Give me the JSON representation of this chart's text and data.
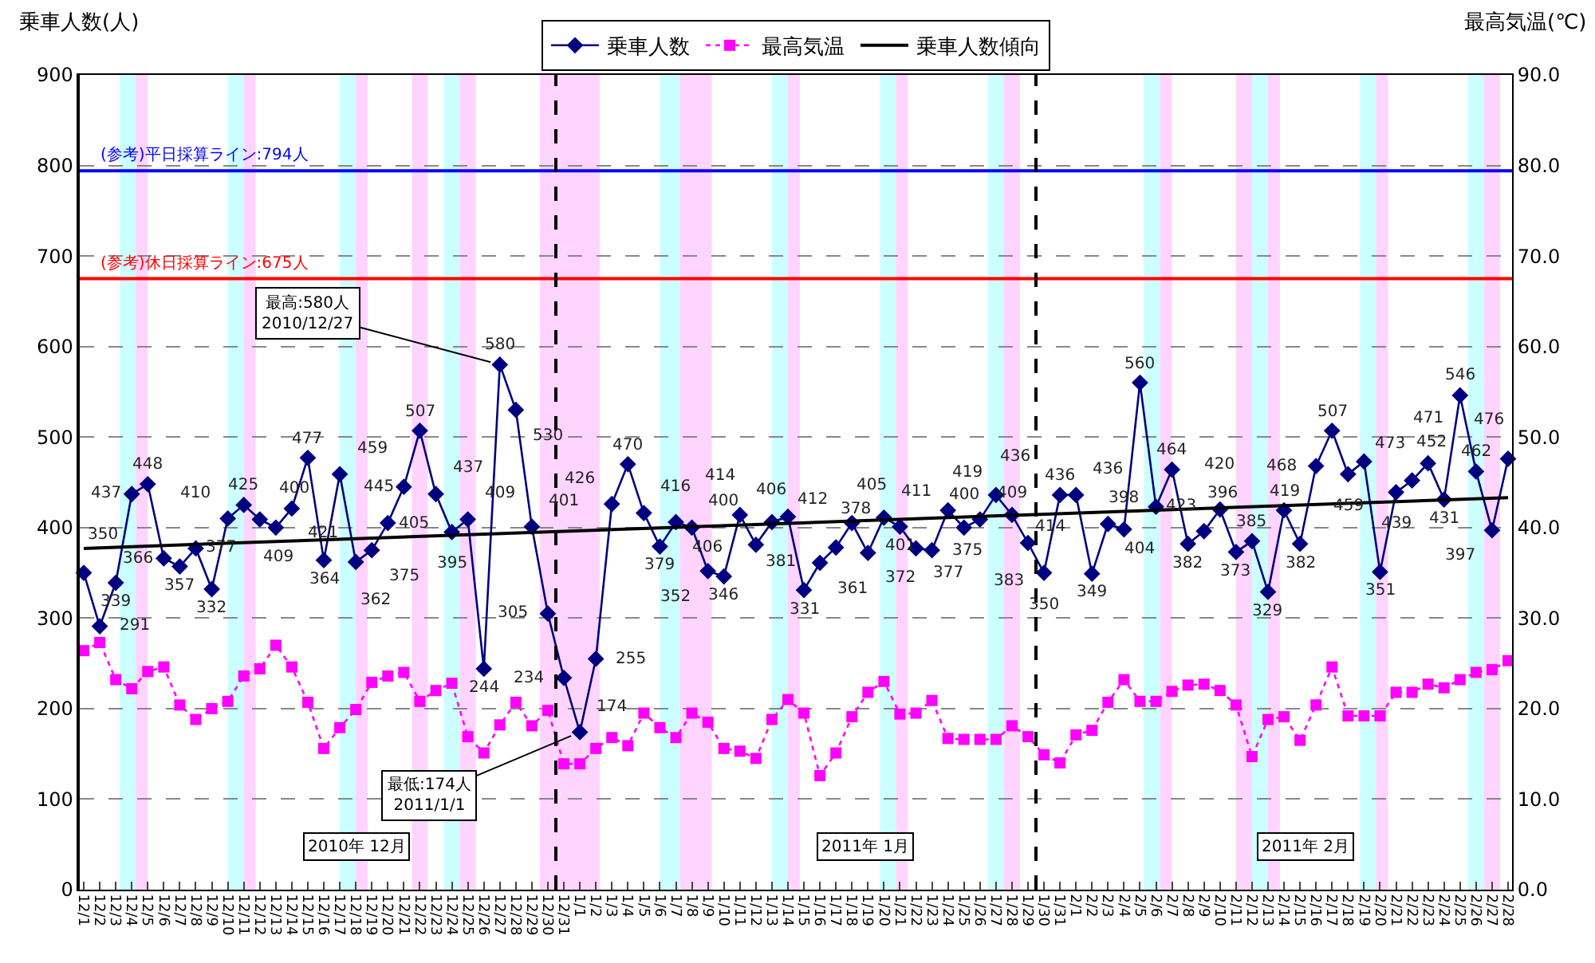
{
  "chart_data": {
    "type": "line",
    "ylabel": "乗車人数(人)",
    "y2label": "最高気温(℃)",
    "x": [
      "2010-12-01",
      "2010-12-02",
      "2010-12-03",
      "2010-12-04",
      "2010-12-05",
      "2010-12-06",
      "2010-12-07",
      "2010-12-08",
      "2010-12-09",
      "2010-12-10",
      "2010-12-11",
      "2010-12-12",
      "2010-12-13",
      "2010-12-14",
      "2010-12-15",
      "2010-12-16",
      "2010-12-17",
      "2010-12-18",
      "2010-12-19",
      "2010-12-20",
      "2010-12-21",
      "2010-12-22",
      "2010-12-23",
      "2010-12-24",
      "2010-12-25",
      "2010-12-26",
      "2010-12-27",
      "2010-12-28",
      "2010-12-29",
      "2010-12-30",
      "2010-12-31",
      "2011-01-01",
      "2011-01-02",
      "2011-01-03",
      "2011-01-04",
      "2011-01-05",
      "2011-01-06",
      "2011-01-07",
      "2011-01-08",
      "2011-01-09",
      "2011-01-10",
      "2011-01-11",
      "2011-01-12",
      "2011-01-13",
      "2011-01-14",
      "2011-01-15",
      "2011-01-16",
      "2011-01-17",
      "2011-01-18",
      "2011-01-19",
      "2011-01-20",
      "2011-01-21",
      "2011-01-22",
      "2011-01-23",
      "2011-01-24",
      "2011-01-25",
      "2011-01-26",
      "2011-01-27",
      "2011-01-28",
      "2011-01-29",
      "2011-01-30",
      "2011-01-31",
      "2011-02-01",
      "2011-02-02",
      "2011-02-03",
      "2011-02-04",
      "2011-02-05",
      "2011-02-06",
      "2011-02-07",
      "2011-02-08",
      "2011-02-09",
      "2011-02-10",
      "2011-02-11",
      "2011-02-12",
      "2011-02-13",
      "2011-02-14",
      "2011-02-15",
      "2011-02-16",
      "2011-02-17",
      "2011-02-18",
      "2011-02-19",
      "2011-02-20",
      "2011-02-21",
      "2011-02-22",
      "2011-02-23",
      "2011-02-24",
      "2011-02-25",
      "2011-02-26",
      "2011-02-27",
      "2011-02-28"
    ],
    "series": [
      {
        "name": "乗車人数",
        "color": "#000080",
        "marker": "diamond",
        "line_style": "solid",
        "values": [
          350,
          291,
          339,
          437,
          448,
          366,
          357,
          377,
          332,
          410,
          425,
          409,
          400,
          421,
          477,
          364,
          459,
          362,
          375,
          405,
          445,
          507,
          437,
          395,
          409,
          244,
          580,
          530,
          401,
          305,
          234,
          174,
          255,
          426,
          470,
          416,
          379,
          406,
          400,
          352,
          346,
          414,
          381,
          406,
          412,
          331,
          361,
          378,
          405,
          372,
          411,
          401,
          377,
          375,
          419,
          400,
          409,
          436,
          414,
          383,
          350,
          436,
          436,
          349,
          404,
          398,
          560,
          423,
          464,
          382,
          396,
          420,
          373,
          385,
          329,
          419,
          382,
          468,
          507,
          459,
          473,
          351,
          439,
          452,
          471,
          431,
          546,
          462,
          397,
          476
        ],
        "value_labels": [
          "350",
          "291",
          "339",
          "437",
          "448",
          "366",
          "357",
          "377",
          "332",
          "410",
          "425",
          "409",
          "400",
          "421",
          "477",
          "364",
          "459",
          "362",
          "375",
          "405",
          "445",
          "507",
          "437",
          "395",
          "409",
          "244",
          "580",
          "530",
          "401",
          "305",
          "234",
          "174",
          "255",
          "426",
          "470",
          "416",
          "379",
          "406",
          "400",
          "352",
          "346",
          "414",
          "381",
          "406",
          "412",
          "331",
          "361",
          "378",
          "405",
          "372",
          "411",
          "401",
          "377",
          "375",
          "419",
          "400",
          "409",
          "436",
          "414",
          "383",
          "350",
          "436",
          "436",
          "349",
          "404",
          "398",
          "560",
          "423",
          "464",
          "382",
          "396",
          "420",
          "373",
          "385",
          "329",
          "419",
          "382",
          "468",
          "507",
          "459",
          "473",
          "351",
          "439",
          "452",
          "471",
          "431",
          "546",
          "462",
          "397",
          "476"
        ]
      },
      {
        "name": "最高気温",
        "color": "#ff00ff",
        "marker": "square",
        "line_style": "dotted",
        "axis": "y2",
        "values": [
          26.4,
          27.3,
          23.2,
          22.2,
          24.1,
          24.6,
          20.4,
          18.8,
          20.0,
          20.8,
          23.6,
          24.4,
          27.0,
          24.6,
          20.7,
          15.6,
          17.9,
          19.9,
          22.9,
          23.6,
          24.0,
          20.8,
          22.0,
          22.8,
          16.9,
          15.1,
          18.2,
          20.7,
          18.1,
          19.8,
          13.9,
          13.9,
          15.6,
          16.8,
          15.9,
          19.5,
          17.9,
          16.8,
          19.5,
          18.5,
          15.6,
          15.3,
          14.5,
          18.8,
          21.0,
          19.5,
          12.6,
          15.1,
          19.1,
          21.8,
          23.0,
          19.4,
          19.5,
          20.9,
          16.7,
          16.6,
          16.6,
          16.6,
          18.1,
          16.9,
          14.9,
          14.0,
          17.1,
          17.6,
          20.7,
          23.2,
          20.8,
          20.8,
          21.9,
          22.6,
          22.7,
          22.0,
          20.4,
          14.7,
          18.8,
          19.1,
          16.5,
          20.4,
          24.6,
          19.2,
          19.2,
          19.2,
          21.8,
          21.8,
          22.7,
          22.3,
          23.2,
          24.0,
          24.3,
          25.3
        ]
      },
      {
        "name": "乗車人数傾向",
        "color": "#000000",
        "marker": "none",
        "line_style": "solid",
        "x": [
          "2010-12-01",
          "2011-02-28"
        ],
        "values": [
          377,
          433
        ]
      }
    ],
    "xlim": [
      "2010-11-30T18:00",
      "2011-02-28T06:00"
    ],
    "xticks": [
      {
        "value": "2010-12-01",
        "label": "12/1"
      },
      {
        "value": "2010-12-02",
        "label": "12/2"
      },
      {
        "value": "2010-12-03",
        "label": "12/3"
      },
      {
        "value": "2010-12-04",
        "label": "12/4"
      },
      {
        "value": "2010-12-05",
        "label": "12/5"
      },
      {
        "value": "2010-12-06",
        "label": "12/6"
      },
      {
        "value": "2010-12-07",
        "label": "12/7"
      },
      {
        "value": "2010-12-08",
        "label": "12/8"
      },
      {
        "value": "2010-12-09",
        "label": "12/9"
      },
      {
        "value": "2010-12-10",
        "label": "12/10"
      },
      {
        "value": "2010-12-11",
        "label": "12/11"
      },
      {
        "value": "2010-12-12",
        "label": "12/12"
      },
      {
        "value": "2010-12-13",
        "label": "12/13"
      },
      {
        "value": "2010-12-14",
        "label": "12/14"
      },
      {
        "value": "2010-12-15",
        "label": "12/15"
      },
      {
        "value": "2010-12-16",
        "label": "12/16"
      },
      {
        "value": "2010-12-17",
        "label": "12/17"
      },
      {
        "value": "2010-12-18",
        "label": "12/18"
      },
      {
        "value": "2010-12-19",
        "label": "12/19"
      },
      {
        "value": "2010-12-20",
        "label": "12/20"
      },
      {
        "value": "2010-12-21",
        "label": "12/21"
      },
      {
        "value": "2010-12-22",
        "label": "12/22"
      },
      {
        "value": "2010-12-23",
        "label": "12/23"
      },
      {
        "value": "2010-12-24",
        "label": "12/24"
      },
      {
        "value": "2010-12-25",
        "label": "12/25"
      },
      {
        "value": "2010-12-26",
        "label": "12/26"
      },
      {
        "value": "2010-12-27",
        "label": "12/27"
      },
      {
        "value": "2010-12-28",
        "label": "12/28"
      },
      {
        "value": "2010-12-29",
        "label": "12/29"
      },
      {
        "value": "2010-12-30",
        "label": "12/30"
      },
      {
        "value": "2010-12-31",
        "label": "12/31"
      },
      {
        "value": "2011-01-01",
        "label": "1/1"
      },
      {
        "value": "2011-01-02",
        "label": "1/2"
      },
      {
        "value": "2011-01-03",
        "label": "1/3"
      },
      {
        "value": "2011-01-04",
        "label": "1/4"
      },
      {
        "value": "2011-01-05",
        "label": "1/5"
      },
      {
        "value": "2011-01-06",
        "label": "1/6"
      },
      {
        "value": "2011-01-07",
        "label": "1/7"
      },
      {
        "value": "2011-01-08",
        "label": "1/8"
      },
      {
        "value": "2011-01-09",
        "label": "1/9"
      },
      {
        "value": "2011-01-10",
        "label": "1/10"
      },
      {
        "value": "2011-01-11",
        "label": "1/11"
      },
      {
        "value": "2011-01-12",
        "label": "1/12"
      },
      {
        "value": "2011-01-13",
        "label": "1/13"
      },
      {
        "value": "2011-01-14",
        "label": "1/14"
      },
      {
        "value": "2011-01-15",
        "label": "1/15"
      },
      {
        "value": "2011-01-16",
        "label": "1/16"
      },
      {
        "value": "2011-01-17",
        "label": "1/17"
      },
      {
        "value": "2011-01-18",
        "label": "1/18"
      },
      {
        "value": "2011-01-19",
        "label": "1/19"
      },
      {
        "value": "2011-01-20",
        "label": "1/20"
      },
      {
        "value": "2011-01-21",
        "label": "1/21"
      },
      {
        "value": "2011-01-22",
        "label": "1/22"
      },
      {
        "value": "2011-01-23",
        "label": "1/23"
      },
      {
        "value": "2011-01-24",
        "label": "1/24"
      },
      {
        "value": "2011-01-25",
        "label": "1/25"
      },
      {
        "value": "2011-01-26",
        "label": "1/26"
      },
      {
        "value": "2011-01-27",
        "label": "1/27"
      },
      {
        "value": "2011-01-28",
        "label": "1/28"
      },
      {
        "value": "2011-01-29",
        "label": "1/29"
      },
      {
        "value": "2011-01-30",
        "label": "1/30"
      },
      {
        "value": "2011-01-31",
        "label": "1/31"
      },
      {
        "value": "2011-02-01",
        "label": "2/1"
      },
      {
        "value": "2011-02-02",
        "label": "2/2"
      },
      {
        "value": "2011-02-03",
        "label": "2/3"
      },
      {
        "value": "2011-02-04",
        "label": "2/4"
      },
      {
        "value": "2011-02-05",
        "label": "2/5"
      },
      {
        "value": "2011-02-06",
        "label": "2/6"
      },
      {
        "value": "2011-02-07",
        "label": "2/7"
      },
      {
        "value": "2011-02-08",
        "label": "2/8"
      },
      {
        "value": "2011-02-09",
        "label": "2/9"
      },
      {
        "value": "2011-02-10",
        "label": "2/10"
      },
      {
        "value": "2011-02-11",
        "label": "2/11"
      },
      {
        "value": "2011-02-12",
        "label": "2/12"
      },
      {
        "value": "2011-02-13",
        "label": "2/13"
      },
      {
        "value": "2011-02-14",
        "label": "2/14"
      },
      {
        "value": "2011-02-15",
        "label": "2/15"
      },
      {
        "value": "2011-02-16",
        "label": "2/16"
      },
      {
        "value": "2011-02-17",
        "label": "2/17"
      },
      {
        "value": "2011-02-18",
        "label": "2/18"
      },
      {
        "value": "2011-02-19",
        "label": "2/19"
      },
      {
        "value": "2011-02-20",
        "label": "2/20"
      },
      {
        "value": "2011-02-21",
        "label": "2/21"
      },
      {
        "value": "2011-02-22",
        "label": "2/22"
      },
      {
        "value": "2011-02-23",
        "label": "2/23"
      },
      {
        "value": "2011-02-24",
        "label": "2/24"
      },
      {
        "value": "2011-02-25",
        "label": "2/25"
      },
      {
        "value": "2011-02-26",
        "label": "2/26"
      },
      {
        "value": "2011-02-27",
        "label": "2/27"
      },
      {
        "value": "2011-02-28",
        "label": "2/28"
      }
    ],
    "ylim": [
      0,
      900
    ],
    "yticks": [
      0,
      100,
      200,
      300,
      400,
      500,
      600,
      700,
      800,
      900
    ],
    "y2lim": [
      0,
      90
    ],
    "y2ticks": [
      {
        "value": 0,
        "label": "0.0"
      },
      {
        "value": 10,
        "label": "10.0"
      },
      {
        "value": 20,
        "label": "20.0"
      },
      {
        "value": 30,
        "label": "30.0"
      },
      {
        "value": 40,
        "label": "40.0"
      },
      {
        "value": 50,
        "label": "50.0"
      },
      {
        "value": 60,
        "label": "60.0"
      },
      {
        "value": 70,
        "label": "70.0"
      },
      {
        "value": 80,
        "label": "80.0"
      },
      {
        "value": 90,
        "label": "90.0"
      }
    ],
    "grid": "y",
    "legend": "top",
    "ref_lines": [
      {
        "axis": "y",
        "value": 794,
        "label": "(参考)平日採算ライン:794人",
        "color": "#0000ff",
        "line_style": "solid"
      },
      {
        "axis": "y",
        "value": 675,
        "label": "(参考)休日採算ライン:675人",
        "color": "#ff0000",
        "line_style": "solid"
      },
      {
        "axis": "x",
        "value": "2010-12-30T12:00",
        "color": "#000000",
        "line_style": "dashed"
      },
      {
        "axis": "x",
        "value": "2011-01-29T12:00",
        "color": "#000000",
        "line_style": "dashed"
      }
    ],
    "bands": [
      {
        "axis": "x",
        "from": "2010-12-03T06:00",
        "to": "2010-12-04T06:00",
        "color": "#ccffff"
      },
      {
        "axis": "x",
        "from": "2010-12-04T06:00",
        "to": "2010-12-05T00:00",
        "color": "#ffd5ff"
      },
      {
        "axis": "x",
        "from": "2010-12-10T00:00",
        "to": "2010-12-11T00:00",
        "color": "#ccffff"
      },
      {
        "axis": "x",
        "from": "2010-12-11T00:00",
        "to": "2010-12-11T18:00",
        "color": "#ffd5ff"
      },
      {
        "axis": "x",
        "from": "2010-12-17T00:00",
        "to": "2010-12-18T00:00",
        "color": "#ccffff"
      },
      {
        "axis": "x",
        "from": "2010-12-18T00:00",
        "to": "2010-12-18T18:00",
        "color": "#ffd5ff"
      },
      {
        "axis": "x",
        "from": "2010-12-21T12:00",
        "to": "2010-12-22T12:00",
        "color": "#ffd5ff"
      },
      {
        "axis": "x",
        "from": "2010-12-23T12:00",
        "to": "2010-12-24T12:00",
        "color": "#ccffff"
      },
      {
        "axis": "x",
        "from": "2010-12-24T12:00",
        "to": "2010-12-25T12:00",
        "color": "#ffd5ff"
      },
      {
        "axis": "x",
        "from": "2010-12-29T12:00",
        "to": "2011-01-02T06:00",
        "color": "#ffd5ff"
      },
      {
        "axis": "x",
        "from": "2011-01-06T00:00",
        "to": "2011-01-07T06:00",
        "color": "#ccffff"
      },
      {
        "axis": "x",
        "from": "2011-01-07T06:00",
        "to": "2011-01-09T06:00",
        "color": "#ffd5ff"
      },
      {
        "axis": "x",
        "from": "2011-01-13T00:00",
        "to": "2011-01-14T00:00",
        "color": "#ccffff"
      },
      {
        "axis": "x",
        "from": "2011-01-14T00:00",
        "to": "2011-01-14T18:00",
        "color": "#ffd5ff"
      },
      {
        "axis": "x",
        "from": "2011-01-19T18:00",
        "to": "2011-01-20T18:00",
        "color": "#ccffff"
      },
      {
        "axis": "x",
        "from": "2011-01-20T18:00",
        "to": "2011-01-21T12:00",
        "color": "#ffd5ff"
      },
      {
        "axis": "x",
        "from": "2011-01-26T12:00",
        "to": "2011-01-27T12:00",
        "color": "#ccffff"
      },
      {
        "axis": "x",
        "from": "2011-01-27T12:00",
        "to": "2011-01-28T12:00",
        "color": "#ffd5ff"
      },
      {
        "axis": "x",
        "from": "2011-02-05T06:00",
        "to": "2011-02-06T06:00",
        "color": "#ccffff"
      },
      {
        "axis": "x",
        "from": "2011-02-06T06:00",
        "to": "2011-02-07T00:00",
        "color": "#ffd5ff"
      },
      {
        "axis": "x",
        "from": "2011-02-11T00:00",
        "to": "2011-02-12T00:00",
        "color": "#ffd5ff"
      },
      {
        "axis": "x",
        "from": "2011-02-12T00:00",
        "to": "2011-02-13T00:00",
        "color": "#ccffff"
      },
      {
        "axis": "x",
        "from": "2011-02-13T00:00",
        "to": "2011-02-13T18:00",
        "color": "#ffd5ff"
      },
      {
        "axis": "x",
        "from": "2011-02-18T18:00",
        "to": "2011-02-19T18:00",
        "color": "#ccffff"
      },
      {
        "axis": "x",
        "from": "2011-02-19T18:00",
        "to": "2011-02-20T12:00",
        "color": "#ffd5ff"
      },
      {
        "axis": "x",
        "from": "2011-02-25T12:00",
        "to": "2011-02-26T12:00",
        "color": "#ccffff"
      },
      {
        "axis": "x",
        "from": "2011-02-26T12:00",
        "to": "2011-02-27T12:00",
        "color": "#ffd5ff"
      }
    ],
    "annotations": [
      {
        "text": "最高:580人\n2010/12/27",
        "x": "2010-12-27",
        "y": 580
      },
      {
        "text": "最低:174人\n2011/1/1",
        "x": "2011-01-01",
        "y": 174
      },
      "2010年 12月",
      "2011年 1月",
      "2011年 2月"
    ]
  }
}
